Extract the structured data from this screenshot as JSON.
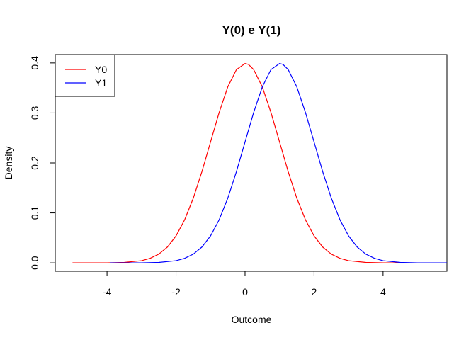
{
  "chart_data": {
    "type": "line",
    "title": "Y(0) e Y(1)",
    "xlabel": "Outcome",
    "ylabel": "Density",
    "xlim": [
      -5.5,
      5.85
    ],
    "ylim": [
      -0.0168,
      0.4168
    ],
    "x_ticks": [
      -4,
      -2,
      0,
      2,
      4
    ],
    "x_tick_labels": [
      "-4",
      "-2",
      "0",
      "2",
      "4"
    ],
    "y_ticks": [
      0.0,
      0.1,
      0.2,
      0.3,
      0.4
    ],
    "y_tick_labels": [
      "0.0",
      "0.1",
      "0.2",
      "0.3",
      "0.4"
    ],
    "grid": false,
    "legend_position": "top-left",
    "series": [
      {
        "name": "Y0",
        "color": "#ff0000",
        "x": [
          -5.0,
          -4.5,
          -4.0,
          -3.5,
          -3.0,
          -2.75,
          -2.5,
          -2.25,
          -2.0,
          -1.75,
          -1.5,
          -1.25,
          -1.0,
          -0.75,
          -0.5,
          -0.25,
          0.0,
          0.1,
          0.25,
          0.5,
          0.75,
          1.0,
          1.25,
          1.5,
          1.75,
          2.0,
          2.25,
          2.5,
          2.75,
          3.0,
          3.5,
          4.0,
          4.5,
          5.0
        ],
        "y": [
          0.0,
          0.0,
          0.0001,
          0.0009,
          0.0044,
          0.0091,
          0.0175,
          0.0317,
          0.054,
          0.0863,
          0.1295,
          0.1826,
          0.242,
          0.3011,
          0.3521,
          0.3867,
          0.3989,
          0.397,
          0.3867,
          0.3521,
          0.3011,
          0.242,
          0.1826,
          0.1295,
          0.0863,
          0.054,
          0.0317,
          0.0175,
          0.0091,
          0.0044,
          0.0009,
          0.0001,
          0.0,
          0.0
        ]
      },
      {
        "name": "Y1",
        "color": "#0000ff",
        "x": [
          -3.9,
          -3.5,
          -3.0,
          -2.5,
          -2.0,
          -1.75,
          -1.5,
          -1.25,
          -1.0,
          -0.75,
          -0.5,
          -0.25,
          0.0,
          0.25,
          0.5,
          0.75,
          1.0,
          1.1,
          1.25,
          1.5,
          1.75,
          2.0,
          2.25,
          2.5,
          2.75,
          3.0,
          3.25,
          3.5,
          3.75,
          4.0,
          4.5,
          5.0,
          5.85
        ],
        "y": [
          0.0,
          0.0001,
          0.0001,
          0.0009,
          0.0044,
          0.0091,
          0.0175,
          0.0317,
          0.054,
          0.0863,
          0.1295,
          0.1826,
          0.242,
          0.3011,
          0.3521,
          0.3867,
          0.3989,
          0.397,
          0.3867,
          0.3521,
          0.3011,
          0.242,
          0.1826,
          0.1295,
          0.0863,
          0.054,
          0.0317,
          0.0175,
          0.0091,
          0.0044,
          0.0009,
          0.0001,
          0.0
        ]
      }
    ]
  }
}
